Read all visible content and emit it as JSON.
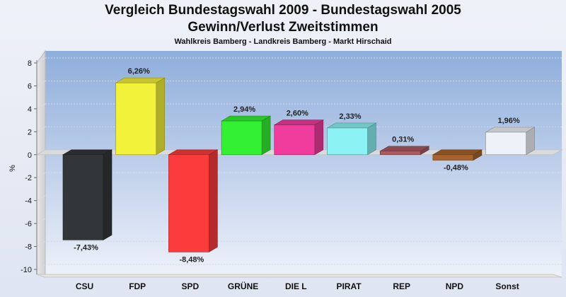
{
  "chart_data": {
    "type": "bar",
    "title": "Vergleich Bundestagswahl 2009 - Bundestagswahl 2005",
    "title_line2": "Gewinn/Verlust Zweitstimmen",
    "subtitle": "Wahlkreis Bamberg - Landkreis Bamberg - Markt Hirschaid",
    "xlabel": "",
    "ylabel": "%",
    "ylim": [
      -10,
      8
    ],
    "yticks": [
      8,
      6,
      4,
      2,
      0,
      -2,
      -4,
      -6,
      -8,
      -10
    ],
    "grid": true,
    "categories": [
      "CSU",
      "FDP",
      "SPD",
      "GRÜNE",
      "DIE L",
      "PIRAT",
      "REP",
      "NPD",
      "Sonst"
    ],
    "values": [
      -7.43,
      6.26,
      -8.48,
      2.94,
      2.6,
      2.33,
      0.31,
      -0.48,
      1.96
    ],
    "value_labels": [
      "-7,43%",
      "6,26%",
      "-8,48%",
      "2,94%",
      "2,60%",
      "2,33%",
      "0,31%",
      "-0,48%",
      "1,96%"
    ],
    "colors": [
      "#333639",
      "#f2f23a",
      "#fc3c3c",
      "#33f033",
      "#f03c9c",
      "#8cf2f4",
      "#aa5c62",
      "#a8642c",
      "#eef1f8"
    ]
  }
}
